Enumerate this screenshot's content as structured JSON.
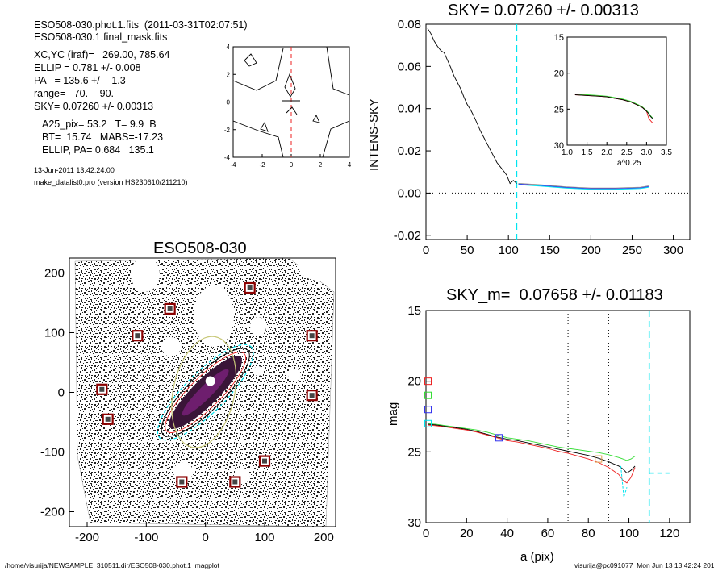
{
  "header": {
    "file_line": "ESO508-030.phot.1.fits  (2011-03-31T02:07:51)",
    "mask_line": "ESO508-030.1.final_mask.fits",
    "xcyc": "XC,YC (iraf)=   269.00, 785.64",
    "ellip": "ELLIP = 0.781 +/- 0.008",
    "pa": "PA   = 135.6 +/-   1.3",
    "range": "range=   70.-   90.",
    "sky": "SKY= 0.07260 +/- 0.00313",
    "a25": "A25_pix= 53.2   T= 9.9  B",
    "bt": "BT=  15.74   MABS=-17.23",
    "ellip_pa": "ELLIP, PA= 0.684   135.1",
    "date": "13-Jun-2011 13:42:24.00",
    "program": "make_datalist0.pro (version HS230610/211210)"
  },
  "footer": {
    "left": "/home/visurija/NEWSAMPLE_310511.dir/ESO508-030.phot.1_magplot",
    "right": "visurija@pc091077  Mon Jun 13 13:42:24 2011"
  },
  "colors": {
    "cyan": "#00e5f0",
    "green": "#33dd33",
    "red": "#ee2222",
    "blue": "#3333ee",
    "grey": "#888888",
    "dark_red": "#8b0000",
    "olive": "#c8c878",
    "orange": "#e0a050"
  },
  "chart_data": [
    {
      "id": "contour",
      "type": "contour",
      "xlim": [
        -4,
        4
      ],
      "ylim": [
        -4,
        4
      ],
      "xticks": [
        "-4",
        "-2",
        "0",
        "2",
        "4"
      ],
      "yticks": [
        "-4",
        "-2",
        "0",
        "2",
        "4"
      ],
      "crosshair": {
        "x": 0,
        "y": 0,
        "color": "red",
        "style": "dashed"
      }
    },
    {
      "id": "sky",
      "type": "line",
      "title": "SKY= 0.07260 +/- 0.00313",
      "xlabel": "",
      "ylabel": "INTENS-SKY",
      "xlim": [
        0,
        320
      ],
      "ylim": [
        -0.022,
        0.08
      ],
      "xticks": [
        "0",
        "50",
        "100",
        "150",
        "200",
        "250",
        "300"
      ],
      "yticks": [
        "0.08",
        "0.06",
        "0.04",
        "0.02",
        "0.00",
        "-0.02"
      ],
      "x": [
        2,
        6,
        10,
        14,
        18,
        22,
        26,
        30,
        34,
        38,
        42,
        46,
        50,
        54,
        58,
        62,
        66,
        70,
        74,
        78,
        82,
        86,
        90,
        94,
        98,
        102,
        106,
        110
      ],
      "y": [
        0.078,
        0.0755,
        0.072,
        0.0695,
        0.0675,
        0.0665,
        0.063,
        0.0595,
        0.0555,
        0.0525,
        0.0495,
        0.0455,
        0.042,
        0.0395,
        0.0365,
        0.033,
        0.0295,
        0.0265,
        0.0235,
        0.0205,
        0.0175,
        0.0145,
        0.0125,
        0.0105,
        0.0085,
        0.0045,
        0.006,
        0.0045
      ],
      "outer_x": [
        112,
        140,
        170,
        200,
        230,
        260,
        270
      ],
      "outer_y": [
        0.004,
        0.0033,
        0.0024,
        0.0018,
        0.0018,
        0.0022,
        0.0028
      ],
      "sky_range_x": 110,
      "inset": {
        "xlabel": "a^0.25",
        "xlim": [
          1.0,
          3.5
        ],
        "ylim": [
          30,
          15
        ],
        "xticks": [
          "1.0",
          "1.5",
          "2.0",
          "2.5",
          "3.0",
          "3.5"
        ],
        "yticks": [
          "15",
          "20",
          "25",
          "30"
        ],
        "x": [
          1.2,
          1.5,
          1.8,
          2.0,
          2.2,
          2.4,
          2.6,
          2.8,
          2.9,
          3.0,
          3.05,
          3.1,
          3.15
        ],
        "y": [
          23.0,
          23.1,
          23.2,
          23.3,
          23.5,
          23.7,
          24.0,
          24.5,
          24.8,
          25.3,
          25.6,
          26.0,
          26.3
        ]
      }
    },
    {
      "id": "image",
      "type": "image",
      "title": "ESO508-030",
      "xlim": [
        -230,
        220
      ],
      "ylim": [
        -225,
        225
      ],
      "xticks": [
        "-200",
        "-100",
        "0",
        "100",
        "200"
      ],
      "yticks": [
        "200",
        "100",
        "0",
        "-100",
        "-200"
      ],
      "stars": [
        [
          -60,
          140
        ],
        [
          75,
          175
        ],
        [
          -115,
          95
        ],
        [
          180,
          95
        ],
        [
          -175,
          5
        ],
        [
          180,
          -5
        ],
        [
          -165,
          -45
        ],
        [
          100,
          -115
        ],
        [
          -40,
          -150
        ],
        [
          50,
          -150
        ]
      ]
    },
    {
      "id": "mag",
      "type": "line",
      "title": "SKY_m=  0.07658 +/- 0.01183",
      "xlabel": "a (pix)",
      "ylabel": "mag",
      "xlim": [
        0,
        130
      ],
      "ylim": [
        30,
        15
      ],
      "xticks": [
        "0",
        "20",
        "40",
        "60",
        "80",
        "100",
        "120"
      ],
      "yticks": [
        "15",
        "20",
        "25",
        "30"
      ],
      "x": [
        1,
        5,
        10,
        15,
        20,
        25,
        30,
        35,
        40,
        45,
        50,
        55,
        60,
        65,
        70,
        75,
        80,
        85,
        90,
        95,
        97,
        99,
        101,
        103
      ],
      "series": [
        {
          "color": "green",
          "values": [
            23.0,
            23.05,
            23.15,
            23.25,
            23.35,
            23.45,
            23.6,
            23.8,
            24.0,
            24.1,
            24.2,
            24.35,
            24.5,
            24.65,
            24.75,
            24.85,
            24.95,
            25.05,
            25.2,
            25.4,
            25.5,
            25.6,
            25.5,
            25.3
          ]
        },
        {
          "color": "black",
          "values": [
            23.05,
            23.1,
            23.2,
            23.3,
            23.4,
            23.55,
            23.75,
            23.95,
            24.1,
            24.2,
            24.35,
            24.5,
            24.65,
            24.8,
            24.95,
            25.1,
            25.25,
            25.45,
            25.7,
            26.0,
            26.2,
            26.5,
            26.3,
            26.0
          ]
        },
        {
          "color": "red",
          "values": [
            23.1,
            23.15,
            23.25,
            23.35,
            23.45,
            23.6,
            23.8,
            24.0,
            24.2,
            24.3,
            24.45,
            24.6,
            24.75,
            24.95,
            25.1,
            25.3,
            25.5,
            25.75,
            26.1,
            26.6,
            27.0,
            27.2,
            26.8,
            26.1
          ]
        }
      ],
      "vlines_dotted": [
        70,
        90
      ],
      "vline_dashed": 110,
      "sky_level": {
        "x0": 110,
        "x1": 120,
        "y": 26.5
      },
      "markers": [
        {
          "x": 1,
          "y": 20.0,
          "color": "red"
        },
        {
          "x": 1,
          "y": 21.0,
          "color": "green"
        },
        {
          "x": 1,
          "y": 22.0,
          "color": "blue"
        },
        {
          "x": 1,
          "y": 23.0,
          "color": "cyan"
        },
        {
          "x": 36,
          "y": 24.0,
          "color": "blue"
        },
        {
          "x": 85,
          "y": 25.5,
          "color": "orange"
        }
      ]
    }
  ]
}
